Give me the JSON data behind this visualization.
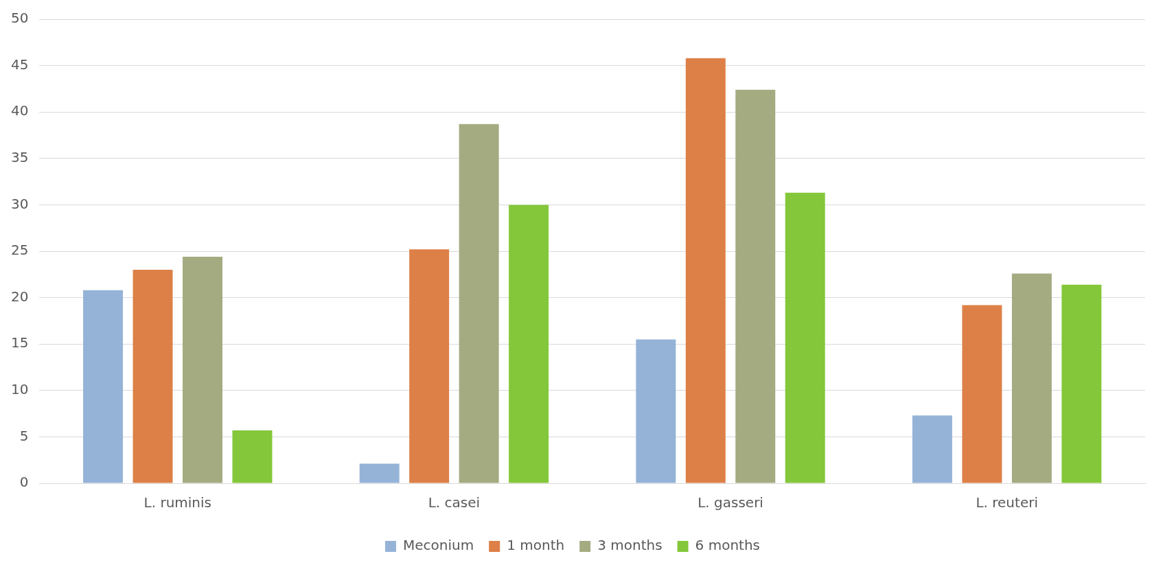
{
  "chart_data": {
    "type": "bar",
    "categories": [
      "L. ruminis",
      "L. casei",
      "L. gasseri",
      "L. reuteri"
    ],
    "series": [
      {
        "name": "Meconium",
        "color": "#95b3d7",
        "values": [
          20.8,
          2.1,
          15.5,
          7.3
        ]
      },
      {
        "name": "1 month",
        "color": "#dd8047",
        "values": [
          23.0,
          25.2,
          45.8,
          19.2
        ]
      },
      {
        "name": "3 months",
        "color": "#a5ab81",
        "values": [
          24.4,
          38.7,
          42.4,
          22.6
        ]
      },
      {
        "name": "6 months",
        "color": "#84c73a",
        "values": [
          5.7,
          30.0,
          31.3,
          21.4
        ]
      }
    ],
    "ylim": [
      0,
      50
    ],
    "yticks": [
      0,
      5,
      10,
      15,
      20,
      25,
      30,
      35,
      40,
      45,
      50
    ],
    "grid": "y",
    "legend": "bottom"
  }
}
